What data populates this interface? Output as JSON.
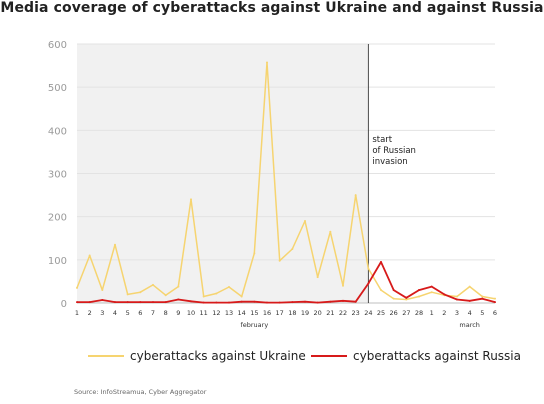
{
  "title": "Media coverage of cyberattacks against Ukraine and against Russia",
  "source": "Source: InfoStreamua, Cyber Aggregator",
  "legend": {
    "ukraine": "cyberattacks against Ukraine",
    "russia": "cyberattacks against Russia"
  },
  "colors": {
    "ukraine": "#f6d470",
    "russia": "#d71a1a",
    "pre_invasion_shade": "#f1f1f1",
    "grid": "#e3e3e3"
  },
  "chart_data": {
    "type": "line",
    "title": "Media coverage of cyberattacks against Ukraine and against Russia",
    "xlabel": "",
    "ylabel": "",
    "ylim": [
      0,
      600
    ],
    "yticks": [
      0,
      100,
      200,
      300,
      400,
      500,
      600
    ],
    "grid": true,
    "legend_position": "bottom",
    "x": [
      "1",
      "2",
      "3",
      "4",
      "5",
      "6",
      "7",
      "8",
      "9",
      "10",
      "11",
      "12",
      "13",
      "14",
      "15",
      "16",
      "17",
      "18",
      "19",
      "20",
      "21",
      "22",
      "23",
      "24",
      "25",
      "26",
      "27",
      "28",
      "1",
      "2",
      "3",
      "4",
      "5",
      "6"
    ],
    "month_labels": [
      {
        "label": "february",
        "at": "15"
      },
      {
        "label": "march",
        "at": "4"
      }
    ],
    "series": [
      {
        "name": "cyberattacks against Ukraine",
        "color": "#f6d470",
        "values": [
          35,
          110,
          30,
          135,
          20,
          25,
          42,
          18,
          38,
          240,
          15,
          22,
          37,
          15,
          115,
          557,
          98,
          125,
          190,
          60,
          165,
          40,
          250,
          80,
          30,
          10,
          8,
          15,
          25,
          18,
          15,
          38,
          15,
          10
        ]
      },
      {
        "name": "cyberattacks against Russia",
        "color": "#d71a1a",
        "values": [
          2,
          2,
          7,
          2,
          2,
          2,
          2,
          2,
          8,
          4,
          1,
          1,
          1,
          3,
          3,
          1,
          1,
          2,
          3,
          1,
          3,
          5,
          3,
          45,
          95,
          30,
          12,
          30,
          38,
          20,
          8,
          5,
          10,
          2
        ]
      }
    ],
    "annotations": [
      {
        "text_lines": [
          "start",
          "of Russian",
          "invasion"
        ],
        "at": "24"
      }
    ],
    "shaded_region": {
      "from": "1",
      "to": "24",
      "label": ""
    }
  }
}
